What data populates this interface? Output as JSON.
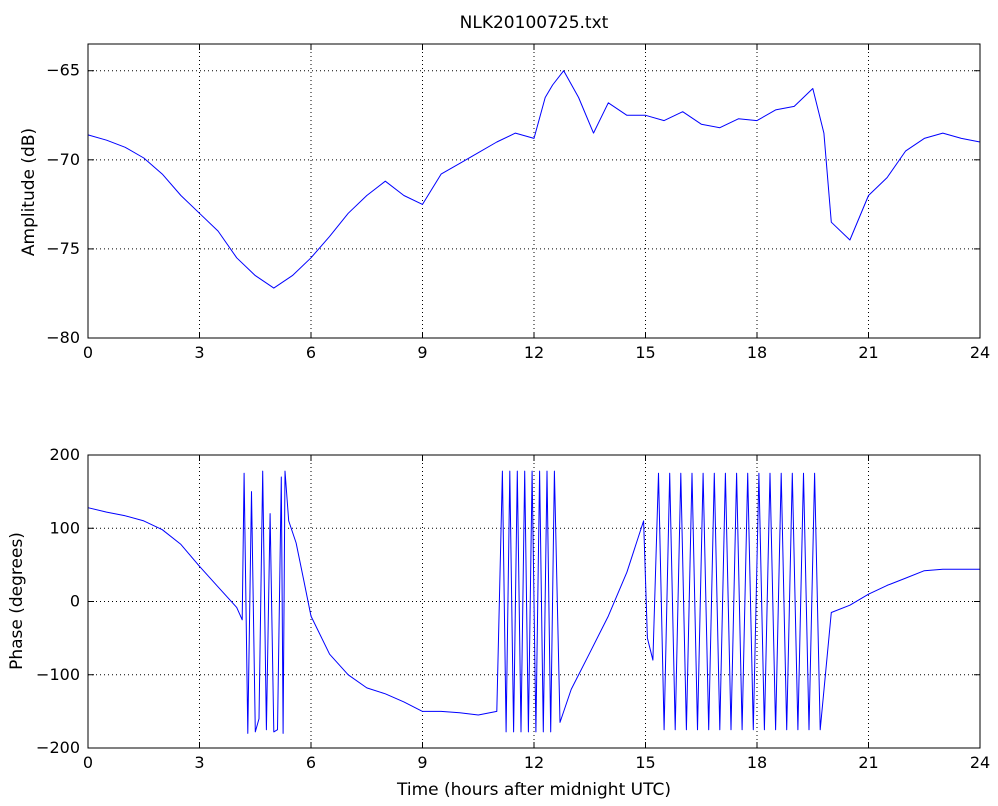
{
  "figure": {
    "background": "#ffffff",
    "line_color": "#0000ff",
    "grid_color": "#000000"
  },
  "chart_data": [
    {
      "type": "line",
      "title": "NLK20100725.txt",
      "xlabel": "",
      "ylabel": "Amplitude (dB)",
      "xlim": [
        0,
        24
      ],
      "ylim": [
        -80,
        -63.5
      ],
      "xticks": [
        0,
        3,
        6,
        9,
        12,
        15,
        18,
        21,
        24
      ],
      "yticks": [
        -80,
        -75,
        -70,
        -65
      ],
      "xtick_labels": [
        "0",
        "3",
        "6",
        "9",
        "12",
        "15",
        "18",
        "21",
        "24"
      ],
      "ytick_labels": [
        "−80",
        "−75",
        "−70",
        "−65"
      ],
      "grid": true,
      "series": [
        {
          "color": "#0000ff",
          "x": [
            0,
            0.5,
            1,
            1.5,
            2,
            2.5,
            3,
            3.5,
            4,
            4.5,
            5,
            5.5,
            6,
            6.5,
            7,
            7.5,
            8,
            8.5,
            9,
            9.5,
            10,
            10.5,
            11,
            11.5,
            12,
            12.3,
            12.5,
            12.8,
            13.2,
            13.6,
            14,
            14.5,
            15,
            15.5,
            16,
            16.5,
            17,
            17.5,
            18,
            18.5,
            19,
            19.5,
            19.8,
            20,
            20.5,
            21,
            21.5,
            22,
            22.5,
            23,
            23.5,
            24
          ],
          "y": [
            -68.6,
            -68.9,
            -69.3,
            -69.9,
            -70.8,
            -72,
            -73,
            -74,
            -75.5,
            -76.5,
            -77.2,
            -76.5,
            -75.5,
            -74.3,
            -73,
            -72,
            -71.2,
            -72,
            -72.5,
            -70.8,
            -70.2,
            -69.6,
            -69,
            -68.5,
            -68.8,
            -66.5,
            -65.8,
            -65,
            -66.5,
            -68.5,
            -66.8,
            -67.5,
            -67.5,
            -67.8,
            -67.3,
            -68,
            -68.2,
            -67.7,
            -67.8,
            -67.2,
            -67,
            -66,
            -68.5,
            -73.5,
            -74.5,
            -72,
            -71,
            -69.5,
            -68.8,
            -68.5,
            -68.8,
            -69
          ]
        }
      ]
    },
    {
      "type": "line",
      "title": "",
      "xlabel": "Time (hours after midnight UTC)",
      "ylabel": "Phase (degrees)",
      "xlim": [
        0,
        24
      ],
      "ylim": [
        -200,
        200
      ],
      "xticks": [
        0,
        3,
        6,
        9,
        12,
        15,
        18,
        21,
        24
      ],
      "yticks": [
        -200,
        -100,
        0,
        100,
        200
      ],
      "xtick_labels": [
        "0",
        "3",
        "6",
        "9",
        "12",
        "15",
        "18",
        "21",
        "24"
      ],
      "ytick_labels": [
        "−200",
        "−100",
        "0",
        "100",
        "200"
      ],
      "grid": true,
      "series": [
        {
          "color": "#0000ff",
          "x": [
            0,
            0.5,
            1,
            1.5,
            2,
            2.5,
            3,
            3.5,
            4,
            4.15,
            4.2,
            4.3,
            4.4,
            4.5,
            4.6,
            4.7,
            4.8,
            4.9,
            5.0,
            5.1,
            5.2,
            5.25,
            5.3,
            5.4,
            5.6,
            5.8,
            6,
            6.5,
            7,
            7.5,
            8,
            8.5,
            9,
            9.5,
            10,
            10.5,
            11,
            11.15,
            11.25,
            11.35,
            11.45,
            11.55,
            11.65,
            11.75,
            11.85,
            11.95,
            12.05,
            12.15,
            12.25,
            12.35,
            12.45,
            12.55,
            12.7,
            13,
            13.5,
            14,
            14.5,
            14.95,
            15.05,
            15.2,
            15.35,
            15.5,
            15.65,
            15.8,
            15.95,
            16.1,
            16.25,
            16.4,
            16.55,
            16.7,
            16.85,
            17.0,
            17.15,
            17.3,
            17.45,
            17.6,
            17.75,
            17.9,
            18.05,
            18.2,
            18.35,
            18.5,
            18.65,
            18.8,
            18.95,
            19.1,
            19.25,
            19.4,
            19.55,
            19.7,
            20,
            20.5,
            21,
            21.5,
            22,
            22.5,
            23,
            23.5,
            24
          ],
          "y": [
            128,
            122,
            117,
            110,
            98,
            78,
            48,
            20,
            -8,
            -25,
            175,
            -180,
            150,
            -178,
            -160,
            178,
            -175,
            120,
            -178,
            -175,
            170,
            -180,
            178,
            110,
            80,
            30,
            -20,
            -72,
            -100,
            -118,
            -126,
            -137,
            -150,
            -150,
            -152,
            -155,
            -150,
            178,
            -178,
            178,
            -178,
            178,
            -178,
            178,
            -178,
            178,
            -178,
            178,
            -178,
            178,
            -178,
            178,
            -165,
            -120,
            -70,
            -20,
            40,
            110,
            -50,
            -80,
            175,
            -175,
            175,
            -175,
            175,
            -175,
            175,
            -175,
            175,
            -175,
            175,
            -175,
            175,
            -175,
            175,
            -175,
            175,
            -175,
            175,
            -175,
            175,
            -175,
            175,
            -175,
            175,
            -175,
            175,
            -175,
            175,
            -175,
            -15,
            -5,
            10,
            22,
            32,
            42,
            44,
            44,
            44
          ]
        }
      ]
    }
  ]
}
